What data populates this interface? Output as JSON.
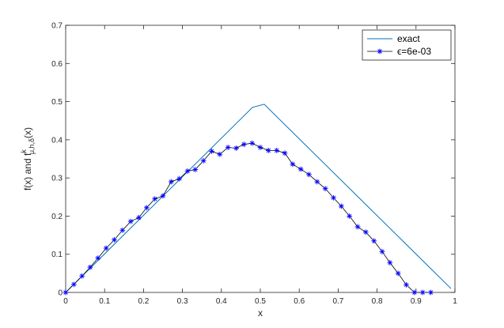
{
  "chart_data": {
    "type": "line",
    "xlabel": "x",
    "ylabel": "f(x) and f",
    "ylabel_sup": "k",
    "ylabel_sub": "μ,h,δ",
    "ylabel_tail": "(x)",
    "xlim": [
      0,
      1
    ],
    "ylim": [
      0,
      0.7
    ],
    "xticks": [
      "0",
      "0.1",
      "0.2",
      "0.3",
      "0.4",
      "0.5",
      "0.6",
      "0.7",
      "0.8",
      "0.9",
      "1"
    ],
    "yticks": [
      "0",
      "0.1",
      "0.2",
      "0.3",
      "0.4",
      "0.5",
      "0.6",
      "0.7"
    ],
    "grid": false,
    "legend_position": "top-right",
    "series": [
      {
        "name": "exact",
        "color": "#0072BD",
        "marker": "none",
        "x": [
          0,
          0.48,
          0.51,
          0.99
        ],
        "y": [
          0,
          0.485,
          0.493,
          0.01
        ]
      },
      {
        "name": "ϵ=6e-03",
        "color": "#0000FF",
        "marker": "asterisk",
        "x": [
          0,
          0.021,
          0.042,
          0.063,
          0.083,
          0.104,
          0.125,
          0.146,
          0.167,
          0.188,
          0.208,
          0.229,
          0.25,
          0.271,
          0.292,
          0.313,
          0.333,
          0.354,
          0.375,
          0.396,
          0.417,
          0.438,
          0.458,
          0.479,
          0.5,
          0.521,
          0.542,
          0.563,
          0.583,
          0.604,
          0.625,
          0.646,
          0.667,
          0.688,
          0.708,
          0.729,
          0.75,
          0.771,
          0.792,
          0.813,
          0.833,
          0.854,
          0.875,
          0.896,
          0.917,
          0.938
        ],
        "y": [
          0,
          0.021,
          0.043,
          0.066,
          0.09,
          0.116,
          0.138,
          0.163,
          0.186,
          0.196,
          0.222,
          0.245,
          0.253,
          0.29,
          0.298,
          0.318,
          0.322,
          0.345,
          0.37,
          0.362,
          0.38,
          0.378,
          0.388,
          0.391,
          0.38,
          0.372,
          0.372,
          0.365,
          0.336,
          0.323,
          0.309,
          0.29,
          0.272,
          0.248,
          0.226,
          0.2,
          0.172,
          0.158,
          0.135,
          0.107,
          0.078,
          0.05,
          0.02,
          0.0,
          0.0,
          0.0
        ]
      }
    ]
  }
}
